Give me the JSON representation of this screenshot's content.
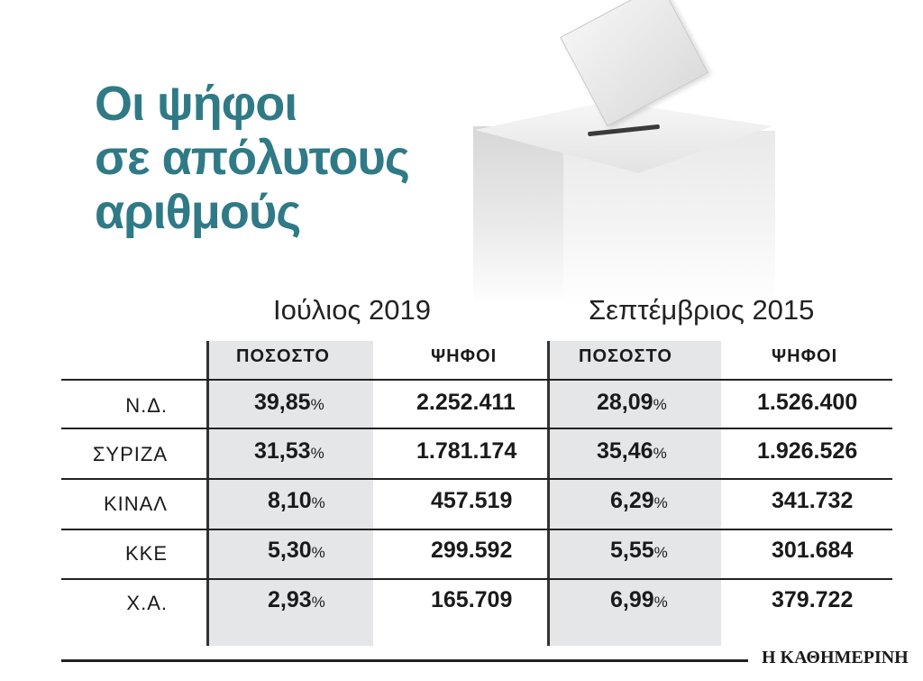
{
  "title": {
    "line1": "Οι ψήφοι",
    "line2": "σε απόλυτους",
    "line3": "αριθμούς"
  },
  "periods": {
    "left": "Ιούλιος 2019",
    "right": "Σεπτέμβριος 2015"
  },
  "headers": {
    "pct": "ΠΟΣΟΣΤΟ",
    "votes": "ΨΗΦΟΙ"
  },
  "pct_sign": "%",
  "rows": [
    {
      "party": "Ν.Δ.",
      "pct2019": "39,85",
      "votes2019": "2.252.411",
      "pct2015": "28,09",
      "votes2015": "1.526.400"
    },
    {
      "party": "ΣΥΡΙΖΑ",
      "pct2019": "31,53",
      "votes2019": "1.781.174",
      "pct2015": "35,46",
      "votes2015": "1.926.526"
    },
    {
      "party": "ΚΙΝΑΛ",
      "pct2019": "8,10",
      "votes2019": "457.519",
      "pct2015": "6,29",
      "votes2015": "341.732"
    },
    {
      "party": "ΚΚΕ",
      "pct2019": "5,30",
      "votes2019": "299.592",
      "pct2015": "5,55",
      "votes2015": "301.684"
    },
    {
      "party": "Χ.Α.",
      "pct2019": "2,93",
      "votes2019": "165.709",
      "pct2015": "6,99",
      "votes2015": "379.722"
    }
  ],
  "brand": "Η ΚΑΘΗΜΕΡΙΝΗ",
  "colors": {
    "title": "#2f7a86",
    "shade": "#e5e6e8"
  }
}
